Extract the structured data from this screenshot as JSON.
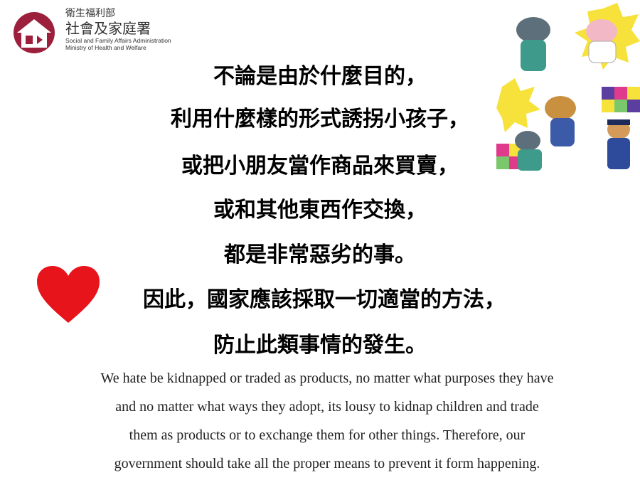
{
  "header": {
    "org_name_line1": "衛生福利部",
    "org_name_line2": "社會及家庭署",
    "org_name_en_line1": "Social and Family Affairs Administration",
    "org_name_en_line2": "Ministry of Health and Welfare"
  },
  "main": {
    "chinese_lines": [
      "不論是由於什麼目的，",
      "利用什麼樣的形式誘拐小孩子，",
      "或把小朋友當作商品來買賣，",
      "或和其他東西作交換，",
      "都是非常惡劣的事。",
      "因此，國家應該採取一切適當的方法，",
      "防止此類事情的發生。"
    ],
    "english_lines": [
      "We hate be kidnapped or traded as products, no matter what purposes they have",
      "and no matter what ways they adopt, its lousy to kidnap children and trade",
      "them as products or to exchange them for other things. Therefore, our",
      "government should take all the proper means to prevent it form happening."
    ]
  },
  "colors": {
    "logo": "#9c1f3c",
    "heart": "#e8141c"
  },
  "icons": {
    "logo": "house-icon",
    "heart": "heart-icon"
  }
}
